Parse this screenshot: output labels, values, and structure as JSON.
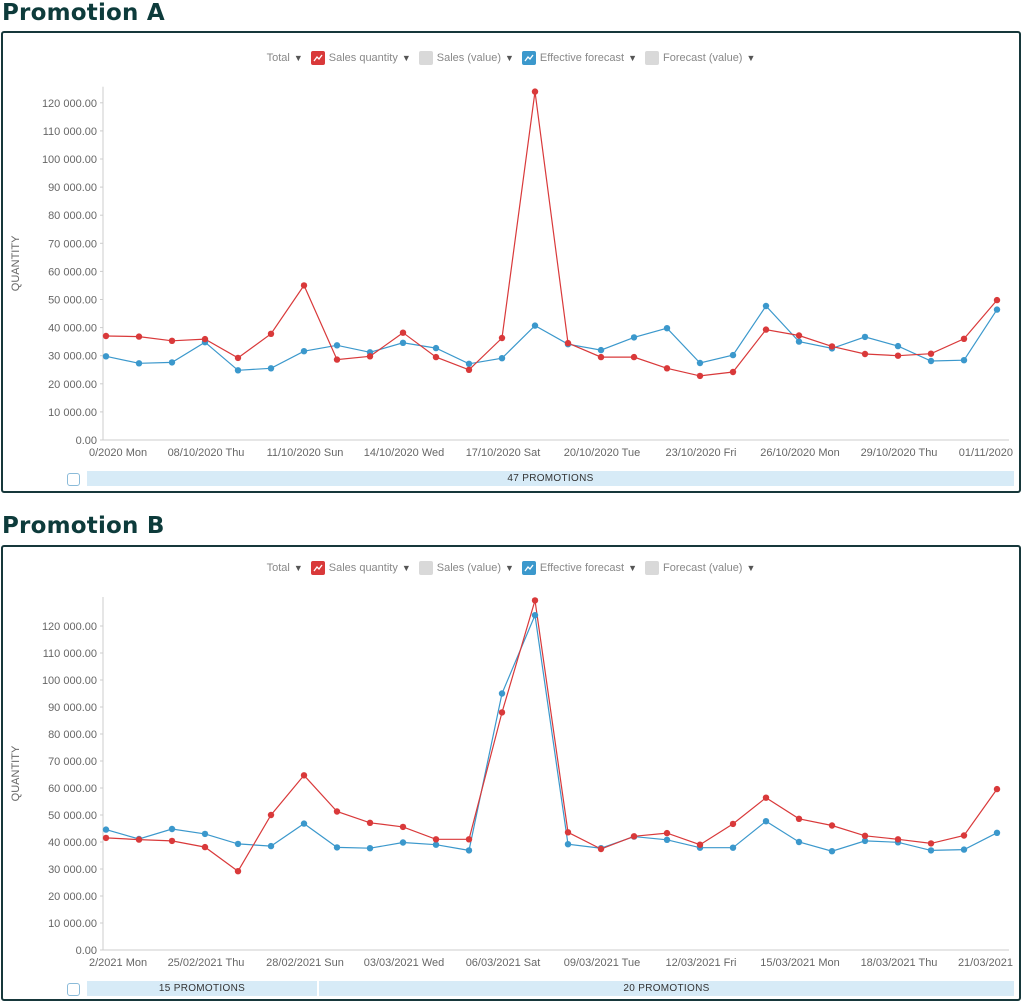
{
  "chart_data": [
    {
      "type": "line",
      "title": "Promotion A",
      "ylabel": "QUANTITY",
      "ylim": [
        0,
        125000
      ],
      "yticks": [
        "0.00",
        "10 000.00",
        "20 000.00",
        "30 000.00",
        "40 000.00",
        "50 000.00",
        "60 000.00",
        "70 000.00",
        "80 000.00",
        "90 000.00",
        "100 000.00",
        "110 000.00",
        "120 000.00"
      ],
      "xtick_labels": [
        "0/2020 Mon",
        "08/10/2020 Thu",
        "11/10/2020 Sun",
        "14/10/2020 Wed",
        "17/10/2020 Sat",
        "20/10/2020 Tue",
        "23/10/2020 Fri",
        "26/10/2020 Mon",
        "29/10/2020 Thu",
        "01/11/2020"
      ],
      "legend": [
        {
          "label": "Total",
          "type": "text"
        },
        {
          "label": "Sales quantity",
          "type": "line",
          "color": "#d9393a"
        },
        {
          "label": "Sales (value)",
          "type": "off"
        },
        {
          "label": "Effective forecast",
          "type": "line",
          "color": "#3b98cc"
        },
        {
          "label": "Forecast (value)",
          "type": "off"
        }
      ],
      "series": [
        {
          "name": "Sales quantity",
          "color": "#d9393a",
          "values": [
            37000,
            36800,
            35300,
            35900,
            29200,
            37800,
            55000,
            28600,
            29800,
            38200,
            29500,
            25000,
            36300,
            124000,
            34500,
            29500,
            29500,
            25500,
            22800,
            24200,
            39300,
            37200,
            33300,
            30600,
            30000,
            30700,
            36000,
            49800
          ]
        },
        {
          "name": "Effective forecast",
          "color": "#3b98cc",
          "values": [
            29800,
            27300,
            27600,
            34800,
            24800,
            25500,
            31600,
            33700,
            31200,
            34600,
            32700,
            27100,
            29100,
            40700,
            34100,
            32000,
            36500,
            39800,
            27400,
            30200,
            47700,
            35000,
            32600,
            36700,
            33400,
            28100,
            28400,
            46400
          ]
        }
      ],
      "promotions": [
        {
          "label": "47 PROMOTIONS"
        }
      ]
    },
    {
      "type": "line",
      "title": "Promotion B",
      "ylabel": "QUANTITY",
      "ylim": [
        0,
        130000
      ],
      "yticks": [
        "0.00",
        "10 000.00",
        "20 000.00",
        "30 000.00",
        "40 000.00",
        "50 000.00",
        "60 000.00",
        "70 000.00",
        "80 000.00",
        "90 000.00",
        "100 000.00",
        "110 000.00",
        "120 000.00"
      ],
      "xtick_labels": [
        "2/2021 Mon",
        "25/02/2021 Thu",
        "28/02/2021 Sun",
        "03/03/2021 Wed",
        "06/03/2021 Sat",
        "09/03/2021 Tue",
        "12/03/2021 Fri",
        "15/03/2021 Mon",
        "18/03/2021 Thu",
        "21/03/2021"
      ],
      "legend": [
        {
          "label": "Total",
          "type": "text"
        },
        {
          "label": "Sales quantity",
          "type": "line",
          "color": "#d9393a"
        },
        {
          "label": "Sales (value)",
          "type": "off"
        },
        {
          "label": "Effective forecast",
          "type": "line",
          "color": "#3b98cc"
        },
        {
          "label": "Forecast (value)",
          "type": "off"
        }
      ],
      "series": [
        {
          "name": "Sales quantity",
          "color": "#d9393a",
          "values": [
            41500,
            40900,
            40400,
            38100,
            29200,
            50000,
            64700,
            51300,
            47100,
            45600,
            41000,
            41000,
            88000,
            129500,
            43600,
            37400,
            42100,
            43300,
            39000,
            46700,
            56400,
            48600,
            46100,
            42300,
            41000,
            39500,
            42400,
            59600
          ]
        },
        {
          "name": "Effective forecast",
          "color": "#3b98cc",
          "values": [
            44600,
            41100,
            44800,
            43000,
            39300,
            38500,
            46800,
            38000,
            37700,
            39800,
            39000,
            36900,
            95000,
            124000,
            39200,
            37700,
            42000,
            40800,
            37900,
            37900,
            47700,
            40000,
            36600,
            40400,
            39900,
            36900,
            37200,
            43400
          ]
        }
      ],
      "promotions": [
        {
          "label": "15 PROMOTIONS"
        },
        {
          "label": "20 PROMOTIONS"
        }
      ]
    }
  ]
}
